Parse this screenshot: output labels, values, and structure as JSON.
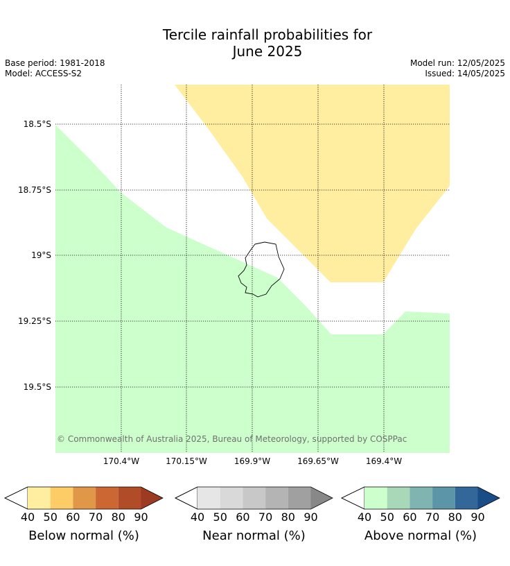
{
  "header": {
    "title_line1": "Tercile rainfall probabilities for",
    "title_line2": "June 2025",
    "base_period": "Base period: 1981-2018",
    "model": "Model: ACCESS-S2",
    "model_run": "Model run: 12/05/2025",
    "issued": "Issued: 14/05/2025"
  },
  "map": {
    "lat_labels": [
      "18.5°S",
      "18.75°S",
      "19°S",
      "19.25°S",
      "19.5°S"
    ],
    "lon_labels": [
      "170.4°W",
      "170.15°W",
      "169.9°W",
      "169.65°W",
      "169.4°W"
    ],
    "copyright": "© Commonwealth of Australia 2025, Bureau of Meteorology, supported by COSPPac",
    "region_colors": {
      "below_normal_40_50": "#ffeda0",
      "above_normal_40_50": "#ccffcc"
    }
  },
  "colorbars": [
    {
      "name": "below",
      "label": "Below normal (%)",
      "ticks": [
        "40",
        "50",
        "60",
        "70",
        "80",
        "90"
      ],
      "colors": [
        "#ffeda0",
        "#fecc66",
        "#e09848",
        "#cc6633",
        "#b04c28",
        "#9c3a22"
      ]
    },
    {
      "name": "near",
      "label": "Near normal (%)",
      "ticks": [
        "40",
        "50",
        "60",
        "70",
        "80",
        "90"
      ],
      "colors": [
        "#e6e6e6",
        "#d9d9d9",
        "#c8c8c8",
        "#b4b4b4",
        "#a0a0a0",
        "#888888"
      ]
    },
    {
      "name": "above",
      "label": "Above normal (%)",
      "ticks": [
        "40",
        "50",
        "60",
        "70",
        "80",
        "90"
      ],
      "colors": [
        "#ccffcc",
        "#a8d8b8",
        "#80b4b0",
        "#5c94a8",
        "#336699",
        "#1a4c88"
      ]
    }
  ]
}
